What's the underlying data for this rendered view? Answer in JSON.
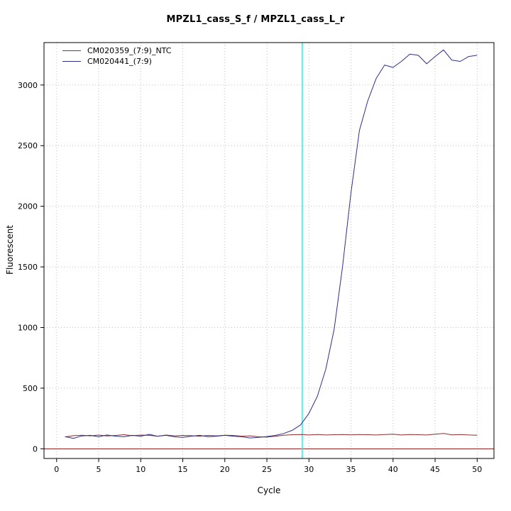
{
  "title": "MPZL1_cass_S_f / MPZL1_cass_L_r",
  "chart_data": {
    "type": "line",
    "title": "MPZL1_cass_S_f / MPZL1_cass_L_r",
    "xlabel": "Cycle",
    "ylabel": "Fluorescent",
    "xlim": [
      -1.5,
      52
    ],
    "ylim": [
      -80,
      3350
    ],
    "x_ticks": [
      0,
      5,
      10,
      15,
      20,
      25,
      30,
      35,
      40,
      45,
      50
    ],
    "y_ticks": [
      0,
      500,
      1000,
      1500,
      2000,
      2500,
      3000
    ],
    "grid": true,
    "grid_color": "#c0c0c0",
    "legend_position": "top-left",
    "threshold_line": {
      "orientation": "vertical",
      "x": 29.2,
      "color": "#00ffff"
    },
    "baseline": {
      "orientation": "horizontal",
      "y": 0,
      "color": "#8b1a1a"
    },
    "x": [
      1,
      2,
      3,
      4,
      5,
      6,
      7,
      8,
      9,
      10,
      11,
      12,
      13,
      14,
      15,
      16,
      17,
      18,
      19,
      20,
      21,
      22,
      23,
      24,
      25,
      26,
      27,
      28,
      29,
      30,
      31,
      32,
      33,
      34,
      35,
      36,
      37,
      38,
      39,
      40,
      41,
      42,
      43,
      44,
      45,
      46,
      47,
      48,
      49,
      50
    ],
    "series": [
      {
        "name": "CM020359_(7:9)_NTC",
        "color": "#8b2f2f",
        "values": [
          98,
          108,
          112,
          107,
          113,
          106,
          110,
          116,
          108,
          113,
          111,
          104,
          113,
          107,
          110,
          108,
          104,
          110,
          107,
          112,
          110,
          104,
          107,
          99,
          96,
          104,
          112,
          116,
          118,
          114,
          117,
          114,
          116,
          118,
          115,
          117,
          116,
          114,
          117,
          121,
          114,
          118,
          116,
          114,
          121,
          126,
          115,
          118,
          114,
          112
        ]
      },
      {
        "name": "CM020441_(7:9)",
        "color": "#2f2f8b",
        "values": [
          100,
          86,
          106,
          111,
          99,
          114,
          104,
          99,
          111,
          104,
          119,
          104,
          111,
          99,
          94,
          104,
          111,
          99,
          104,
          111,
          104,
          99,
          89,
          94,
          101,
          110,
          126,
          152,
          196,
          292,
          432,
          655,
          985,
          1505,
          2110,
          2625,
          2870,
          3055,
          3165,
          3145,
          3195,
          3255,
          3245,
          3175,
          3235,
          3290,
          3205,
          3195,
          3235,
          3245
        ]
      }
    ]
  }
}
